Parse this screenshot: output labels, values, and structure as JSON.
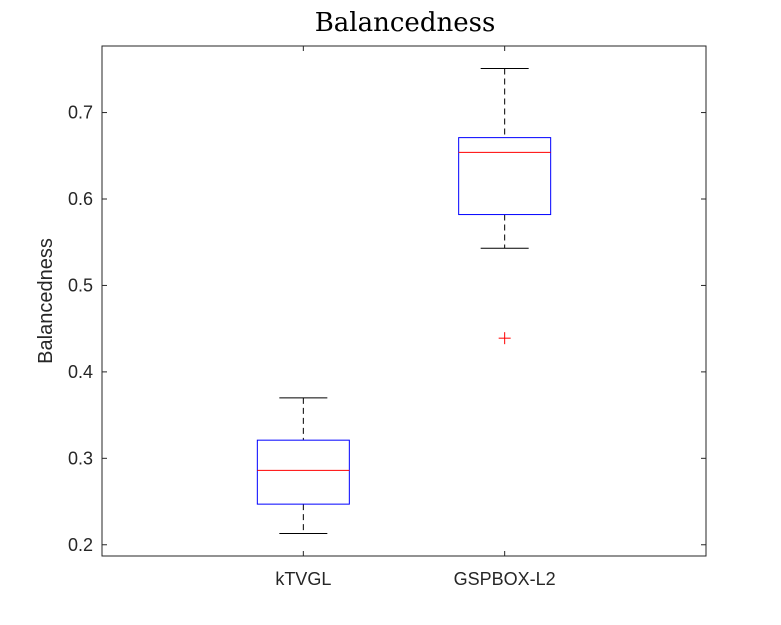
{
  "chart_data": {
    "type": "box",
    "title": "Balancedness",
    "xlabel": "",
    "ylabel": "Balancedness",
    "ylim": [
      0.187,
      0.777
    ],
    "yticks": [
      0.2,
      0.3,
      0.4,
      0.5,
      0.6,
      0.7
    ],
    "ytick_labels": [
      "0.2",
      "0.3",
      "0.4",
      "0.5",
      "0.6",
      "0.7"
    ],
    "categories": [
      "kTVGL",
      "GSPBOX-L2"
    ],
    "boxes": [
      {
        "name": "kTVGL",
        "whisker_low": 0.213,
        "q1": 0.247,
        "median": 0.286,
        "q3": 0.321,
        "whisker_high": 0.37,
        "outliers": []
      },
      {
        "name": "GSPBOX-L2",
        "whisker_low": 0.543,
        "q1": 0.582,
        "median": 0.654,
        "q3": 0.671,
        "whisker_high": 0.751,
        "outliers": [
          0.439
        ]
      }
    ],
    "grid": false,
    "colors": {
      "box": "#0000ff",
      "median": "#ff0000",
      "whisker": "#000000",
      "outlier": "#ff0000",
      "axes": "#262626"
    }
  }
}
